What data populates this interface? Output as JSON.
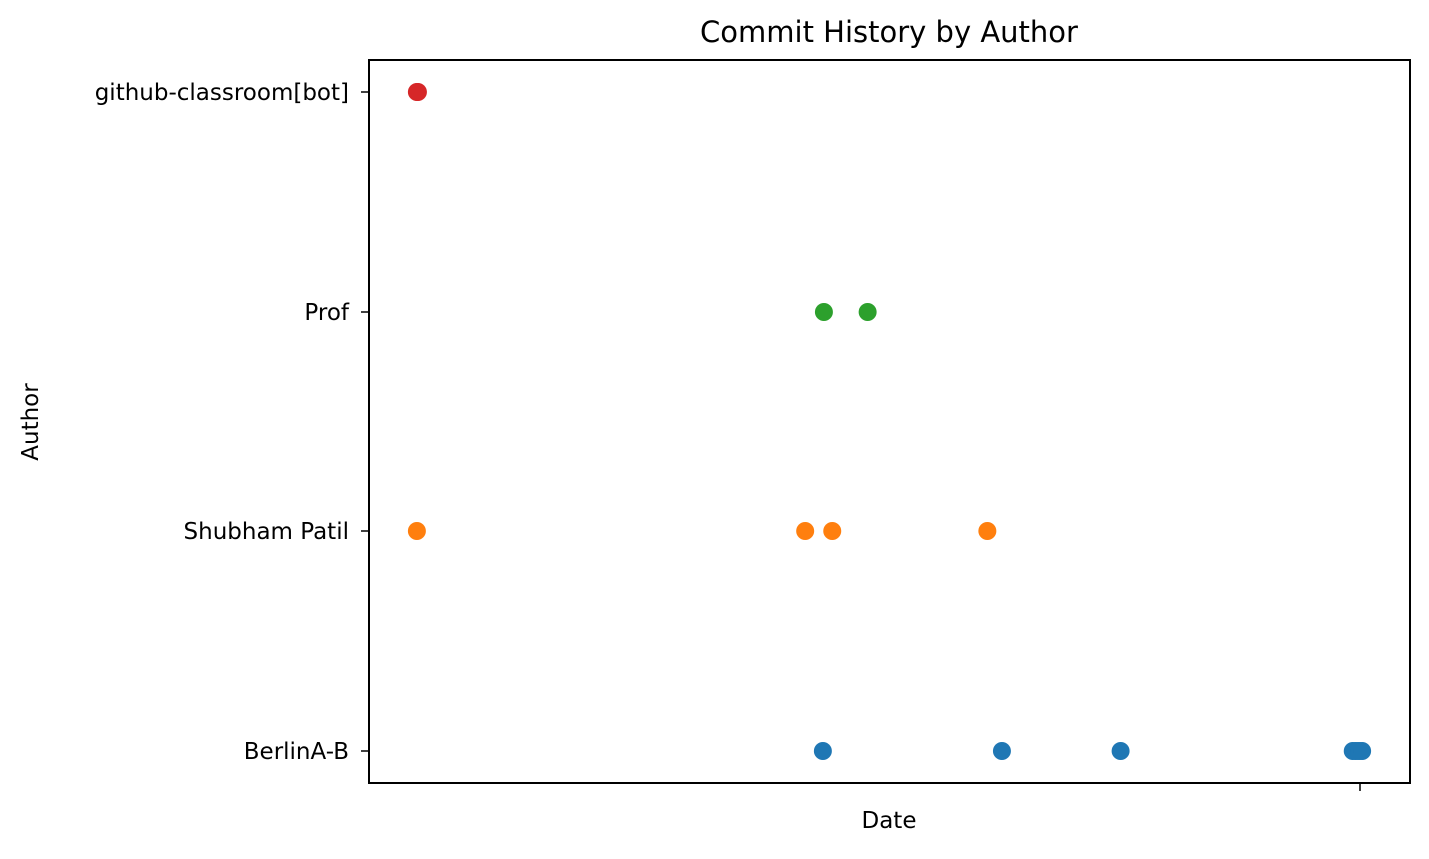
{
  "chart_data": {
    "type": "scatter",
    "title": "Commit History by Author",
    "xlabel": "Date",
    "ylabel": "Author",
    "xticks": [
      ""
    ],
    "categories": [
      "BerlinA-B",
      "Shubham Patil",
      "Prof",
      "github-classroom[bot]"
    ],
    "grid": false,
    "legend": "none",
    "series": [
      {
        "category": "BerlinA-B",
        "color": "#1f77b4",
        "x": [
          0.436,
          0.608,
          0.722,
          0.945,
          0.948,
          0.951,
          0.954
        ]
      },
      {
        "category": "Shubham Patil",
        "color": "#ff7f0e",
        "x": [
          0.046,
          0.419,
          0.445,
          0.594
        ]
      },
      {
        "category": "Prof",
        "color": "#2ca02c",
        "x": [
          0.437,
          0.479
        ]
      },
      {
        "category": "github-classroom[bot]",
        "color": "#d62728",
        "x": [
          0.046,
          0.047
        ]
      }
    ]
  }
}
